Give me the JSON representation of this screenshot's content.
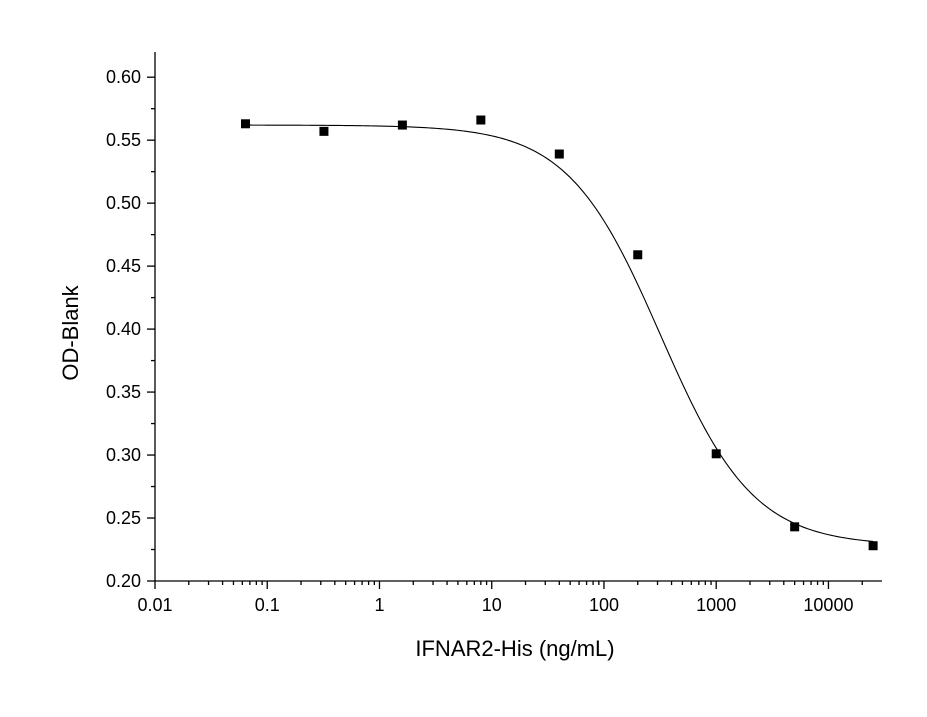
{
  "chart_data": {
    "type": "scatter",
    "title": "",
    "xlabel": "IFNAR2-His (ng/mL)",
    "ylabel": "OD-Blank",
    "x_scale": "log",
    "xlim": [
      0.01,
      30000
    ],
    "ylim": [
      0.2,
      0.62
    ],
    "grid": false,
    "x_ticks": [
      0.01,
      0.1,
      1,
      10,
      100,
      1000,
      10000
    ],
    "x_tick_labels": [
      "0.01",
      "0.1",
      "1",
      "10",
      "100",
      "1000",
      "10000"
    ],
    "y_ticks": [
      0.2,
      0.25,
      0.3,
      0.35,
      0.4,
      0.45,
      0.5,
      0.55,
      0.6
    ],
    "y_tick_labels": [
      "0.20",
      "0.25",
      "0.30",
      "0.35",
      "0.40",
      "0.45",
      "0.50",
      "0.55",
      "0.60"
    ],
    "series": [
      {
        "marker": "square",
        "color": "#000000",
        "x": [
          0.064,
          0.32,
          1.6,
          8,
          40,
          200,
          1000,
          5000,
          25000
        ],
        "y": [
          0.563,
          0.557,
          0.562,
          0.566,
          0.539,
          0.459,
          0.301,
          0.243,
          0.228
        ]
      }
    ],
    "fit_curve": {
      "model": "4PL",
      "top": 0.562,
      "bottom": 0.228,
      "ec50": 320,
      "hill": 1.05,
      "color": "#000000"
    }
  }
}
